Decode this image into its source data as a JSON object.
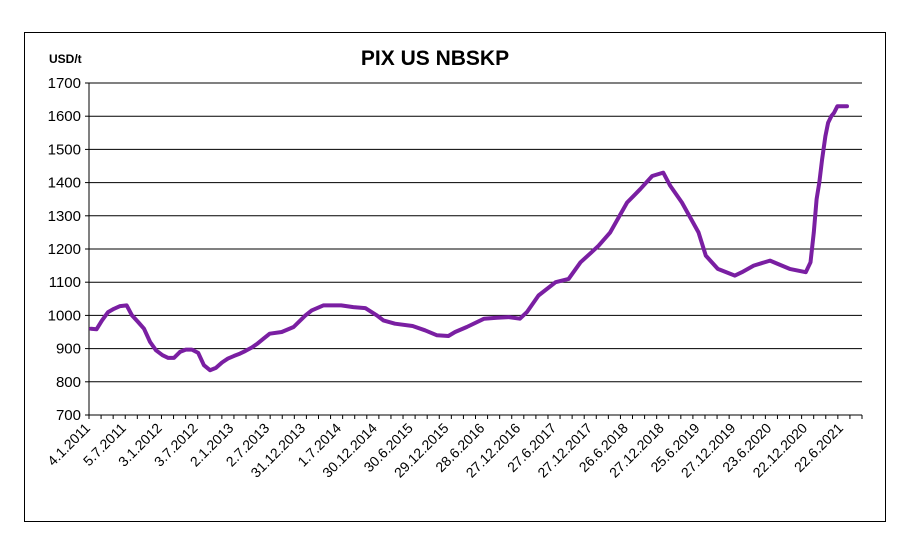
{
  "chart_data": {
    "type": "line",
    "title": "PIX US NBSKP",
    "ylabel": "USD/t",
    "xlabel": "",
    "ylim": [
      700,
      1700
    ],
    "yticks": [
      700,
      800,
      900,
      1000,
      1100,
      1200,
      1300,
      1400,
      1500,
      1600,
      1700
    ],
    "grid": true,
    "legend": "none",
    "line_color": "#7a1fa2",
    "x_tick_labels": [
      "4.1.2011",
      "5.7.2011",
      "3.1.2012",
      "3.7.2012",
      "2.1.2013",
      "2.7.2013",
      "31.12.2013",
      "1.7.2014",
      "30.12.2014",
      "30.6.2015",
      "29.12.2015",
      "28.6.2016",
      "27.12.2016",
      "27.6.2017",
      "27.12.2017",
      "26.6.2018",
      "27.12.2018",
      "25.6.2019",
      "27.12.2019",
      "23.6.2020",
      "22.12.2020",
      "22.6.2021"
    ],
    "series": [
      {
        "x": [
          "2011-01-04",
          "2011-02-01",
          "2011-03-01",
          "2011-04-01",
          "2011-05-01",
          "2011-06-01",
          "2011-07-05",
          "2011-08-01",
          "2011-09-01",
          "2011-10-01",
          "2011-11-01",
          "2011-12-01",
          "2012-01-03",
          "2012-02-01",
          "2012-03-01",
          "2012-04-01",
          "2012-05-01",
          "2012-06-01",
          "2012-07-03",
          "2012-08-01",
          "2012-09-01",
          "2012-10-01",
          "2012-11-01",
          "2012-12-01",
          "2013-01-02",
          "2013-02-01",
          "2013-03-01",
          "2013-04-01",
          "2013-05-01",
          "2013-06-01",
          "2013-07-02",
          "2013-09-01",
          "2013-11-01",
          "2013-12-31",
          "2014-02-01",
          "2014-04-01",
          "2014-07-01",
          "2014-09-01",
          "2014-11-01",
          "2014-12-30",
          "2015-02-01",
          "2015-04-01",
          "2015-06-30",
          "2015-09-01",
          "2015-11-01",
          "2015-12-29",
          "2016-02-01",
          "2016-04-01",
          "2016-06-28",
          "2016-09-01",
          "2016-11-01",
          "2016-12-27",
          "2017-02-01",
          "2017-04-01",
          "2017-06-27",
          "2017-09-01",
          "2017-11-01",
          "2017-12-27",
          "2018-02-01",
          "2018-04-01",
          "2018-06-26",
          "2018-09-01",
          "2018-11-01",
          "2018-12-27",
          "2019-02-01",
          "2019-04-01",
          "2019-06-25",
          "2019-08-01",
          "2019-10-01",
          "2019-12-27",
          "2020-02-01",
          "2020-04-01",
          "2020-06-23",
          "2020-08-01",
          "2020-10-01",
          "2020-12-22",
          "2021-01-15",
          "2021-02-01",
          "2021-02-15",
          "2021-03-01",
          "2021-03-15",
          "2021-04-01",
          "2021-04-15",
          "2021-05-01",
          "2021-05-15",
          "2021-06-01",
          "2021-06-22",
          "2021-07-20"
        ],
        "y": [
          960,
          958,
          985,
          1010,
          1020,
          1028,
          1030,
          1000,
          980,
          960,
          920,
          895,
          880,
          872,
          872,
          890,
          897,
          897,
          887,
          850,
          835,
          842,
          858,
          870,
          878,
          885,
          893,
          903,
          915,
          930,
          945,
          950,
          965,
          1000,
          1015,
          1030,
          1030,
          1025,
          1022,
          1000,
          985,
          975,
          968,
          955,
          940,
          938,
          950,
          965,
          990,
          993,
          995,
          990,
          1010,
          1060,
          1100,
          1110,
          1160,
          1190,
          1210,
          1250,
          1340,
          1380,
          1420,
          1430,
          1390,
          1340,
          1250,
          1180,
          1140,
          1120,
          1130,
          1150,
          1165,
          1155,
          1140,
          1130,
          1160,
          1250,
          1350,
          1400,
          1470,
          1540,
          1580,
          1600,
          1610,
          1630,
          1630,
          1630
        ]
      }
    ]
  }
}
